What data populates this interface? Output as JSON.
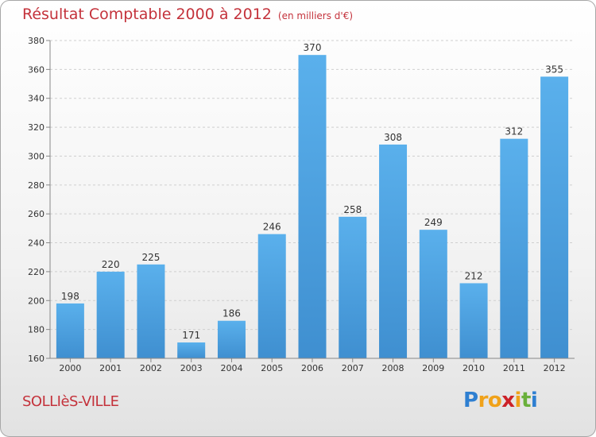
{
  "chart_data": {
    "type": "bar",
    "title": "Résultat Comptable 2000 à 2012",
    "subtitle": "(en milliers d'€)",
    "categories": [
      "2000",
      "2001",
      "2002",
      "2003",
      "2004",
      "2005",
      "2006",
      "2007",
      "2008",
      "2009",
      "2010",
      "2011",
      "2012"
    ],
    "values": [
      198,
      220,
      225,
      171,
      186,
      246,
      370,
      258,
      308,
      249,
      212,
      312,
      355
    ],
    "data_labels": [
      "198",
      "220",
      "225",
      "171",
      "186",
      "246",
      "370",
      "258",
      "308",
      "249",
      "212",
      "312",
      "355"
    ],
    "yticks": [
      "160",
      "180",
      "200",
      "220",
      "240",
      "260",
      "280",
      "300",
      "320",
      "340",
      "360",
      "380"
    ],
    "ylim": [
      160,
      380
    ],
    "grid": "horizontal dashed",
    "xlabel": "",
    "ylabel": "",
    "bar_color": "#3f8fd0",
    "title_color": "#c4323b"
  },
  "footer": {
    "commune": "SOLLIèS-VILLE",
    "logo_letters": [
      "P",
      "r",
      "o",
      "x",
      "i",
      "t",
      "i"
    ],
    "logo_colors": [
      "#2e7fd1",
      "#f0a21a",
      "#f0a21a",
      "#cc2229",
      "#f0a21a",
      "#6ab03b",
      "#2e7fd1"
    ]
  }
}
